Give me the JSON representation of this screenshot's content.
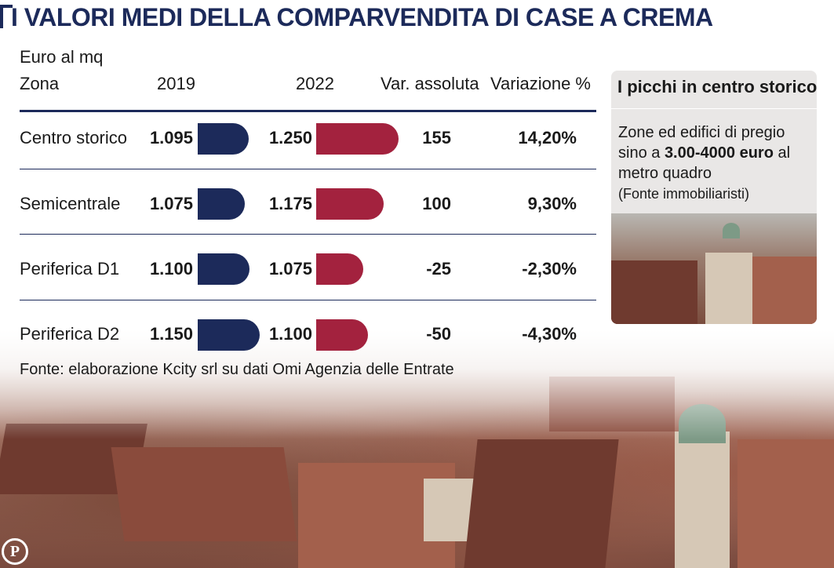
{
  "title": "I VALORI MEDI DELLA COMPARVENDITA DI CASE A CREMA",
  "unit_label": "Euro al mq",
  "headers": {
    "zona": "Zona",
    "y2019": "2019",
    "y2022": "2022",
    "var_abs": "Var. assoluta",
    "var_pct": "Variazione %"
  },
  "rows": [
    {
      "zona": "Centro storico",
      "v2019": "1.095",
      "v2022": "1.250",
      "var_abs": "155",
      "var_pct": "14,20%"
    },
    {
      "zona": "Semicentrale",
      "v2019": "1.075",
      "v2022": "1.175",
      "var_abs": "100",
      "var_pct": "9,30%"
    },
    {
      "zona": "Periferica D1",
      "v2019": "1.100",
      "v2022": "1.075",
      "var_abs": "-25",
      "var_pct": "-2,30%"
    },
    {
      "zona": "Periferica D2",
      "v2019": "1.150",
      "v2022": "1.100",
      "var_abs": "-50",
      "var_pct": "-4,30%"
    }
  ],
  "source": "Fonte: elaborazione Kcity srl su dati Omi Agenzia delle Entrate",
  "sidebox": {
    "title": "I picchi in centro storico",
    "text_1": "Zone ed edifici di pregio sino a ",
    "text_bold": "3.00-4000 euro",
    "text_2": " al metro quadro",
    "text_source": "(Fonte immobiliaristi)"
  },
  "logo": "P",
  "colors": {
    "bar_2019": "#1c2a5a",
    "bar_2022": "#a3223e",
    "title": "#1c2a5a"
  },
  "chart_data": {
    "type": "bar",
    "categories": [
      "Centro storico",
      "Semicentrale",
      "Periferica D1",
      "Periferica D2"
    ],
    "series": [
      {
        "name": "2019",
        "values": [
          1095,
          1075,
          1100,
          1150
        ]
      },
      {
        "name": "2022",
        "values": [
          1250,
          1175,
          1075,
          1100
        ]
      }
    ],
    "var_assoluta": [
      155,
      100,
      -25,
      -50
    ],
    "variazione_pct": [
      14.2,
      9.3,
      -2.3,
      -4.3
    ],
    "title": "I VALORI MEDI DELLA COMPARVENDITA DI CASE A CREMA",
    "ylabel": "Euro al mq"
  }
}
